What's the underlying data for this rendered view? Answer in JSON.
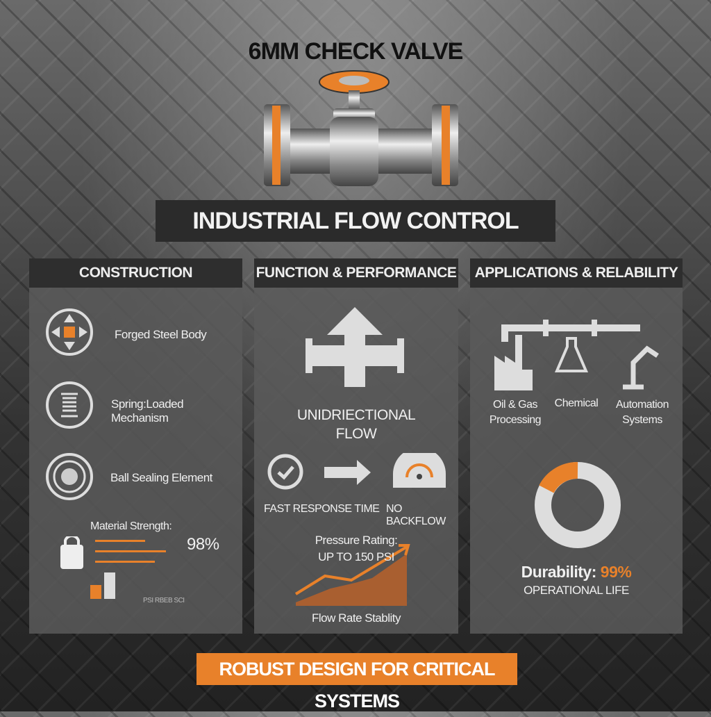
{
  "title": "6MM CHECK VALVE",
  "banner": "INDUSTRIAL FLOW CONTROL",
  "accent": "#e8812a",
  "construction": {
    "header": "CONSTRUCTION",
    "items": [
      "Forged Steel Body",
      "Spring:Loaded Mechanism",
      "Ball Sealing Element"
    ],
    "strength_label": "Material Strength:",
    "strength_value": "98%",
    "chart_caption": "PSI RBEB SCI"
  },
  "function": {
    "header": "FUNCTION & PERFORMANCE",
    "flow_line1": "UNIDRIECTIONAL",
    "flow_line2": "FLOW",
    "fast": "FAST RESPONSE TIME",
    "nobackflow": "NO BACKFLOW",
    "pressure_label": "Pressure Rating:",
    "pressure_value": "UP TO 150 PSI",
    "chart_caption": "Flow Rate Stablity"
  },
  "applications": {
    "header": "APPLICATIONS & RELABILITY",
    "apps": [
      {
        "l1": "Oil & Gas",
        "l2": "Processing"
      },
      {
        "l1": "Chemical",
        "l2": ""
      },
      {
        "l1": "Automation",
        "l2": "Systems"
      }
    ],
    "durability_label": "Durability:",
    "durability_value": "99%",
    "durability_sub": "OPERATIONAL LIFE"
  },
  "footer": "ROBUST DESIGN FOR CRITICAL SYSTEMS"
}
